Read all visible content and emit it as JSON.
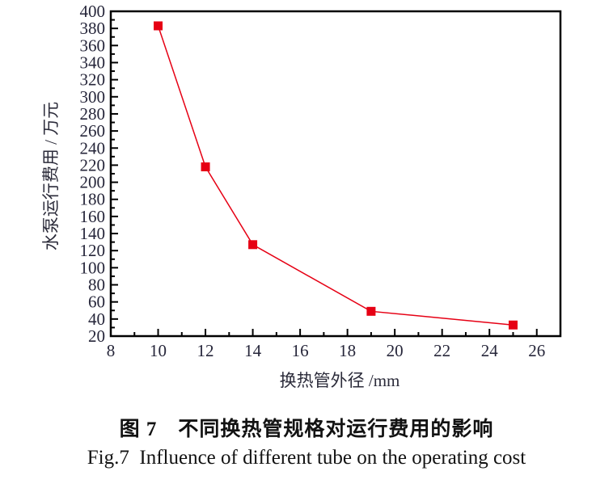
{
  "figure": {
    "caption_zh": "图 7　不同换热管规格对运行费用的影响",
    "caption_en": "Fig.7  Influence of different tube on the operating cost"
  },
  "chart_data": {
    "type": "line",
    "title": "",
    "xlabel": "换热管外径 /mm",
    "ylabel": "水泵运行费用 / 万元",
    "xlim": [
      8,
      27
    ],
    "ylim": [
      20,
      400
    ],
    "x_major_ticks": [
      8,
      10,
      12,
      14,
      16,
      18,
      20,
      22,
      24,
      26
    ],
    "x_minor_ticks": [
      9,
      11,
      13,
      15,
      17,
      19,
      21,
      23,
      25
    ],
    "y_major_step": 20,
    "y_minor_step": 10,
    "grid": false,
    "legend": "none",
    "axis_color": "#000000",
    "tick_label_color": "#26263a",
    "series": [
      {
        "name": "水泵运行费用",
        "marker": "square",
        "marker_size": 11,
        "color": "#e60014",
        "x": [
          10,
          12,
          14,
          19,
          25
        ],
        "y": [
          383,
          218,
          127,
          49,
          33
        ]
      }
    ]
  }
}
